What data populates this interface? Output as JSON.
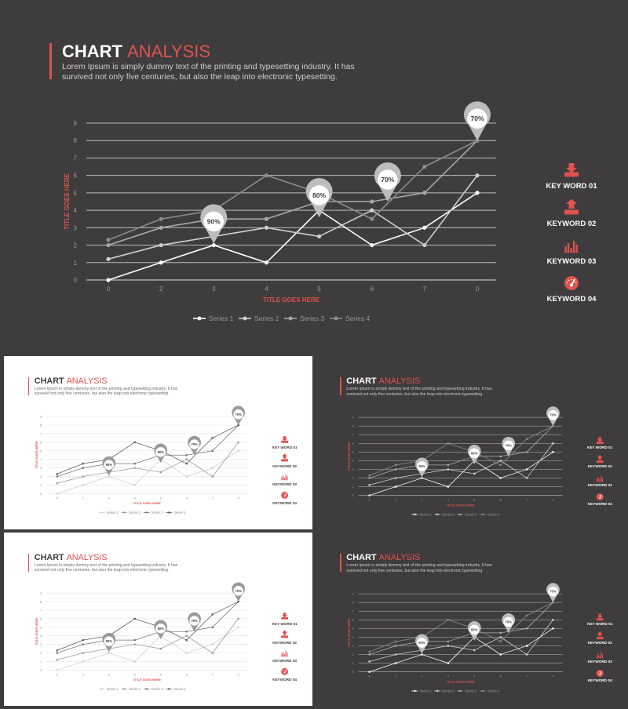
{
  "header": {
    "title_main": "CHART",
    "title_accent": "ANALYSIS",
    "description_line1": "Lorem Ipsum is simply dummy text of the printing and typesetting industry. It has",
    "description_line2": "survived not only five centuries, but also the leap into electronic typesetting."
  },
  "keywords": [
    {
      "label": "KEY WORD 01",
      "icon": "download-tray-icon"
    },
    {
      "label": "KEYWORD 02",
      "icon": "upload-tray-icon"
    },
    {
      "label": "KEYWORD 03",
      "icon": "bar-chart-icon"
    },
    {
      "label": "KEYWORD 04",
      "icon": "dashboard-gauge-icon"
    }
  ],
  "colors": {
    "accent": "#e0524d",
    "dark_bg": "#3f3c3d",
    "light_bg": "#ffffff"
  },
  "chart_data": {
    "type": "line",
    "x": [
      "0",
      "2",
      "3",
      "4",
      "5",
      "6",
      "7",
      "0"
    ],
    "xlabel": "TITLE GOES  HERE",
    "ylabel": "TITLE GOES  HERE",
    "ylim": [
      0,
      9
    ],
    "yticks": [
      0,
      1,
      2,
      3,
      4,
      5,
      6,
      7,
      8,
      9
    ],
    "grid": true,
    "legend_position": "bottom",
    "series": [
      {
        "name": "Series 1",
        "values": [
          0,
          1,
          2,
          1,
          4,
          2,
          3,
          5
        ]
      },
      {
        "name": "Series 2",
        "values": [
          1.2,
          2,
          2.5,
          3,
          2.5,
          4,
          2,
          6
        ]
      },
      {
        "name": "Series 3",
        "values": [
          2,
          3,
          3.5,
          3.5,
          4.5,
          4.5,
          5,
          8
        ]
      },
      {
        "name": "Series 4",
        "values": [
          2.3,
          3.5,
          4,
          6,
          5,
          3.5,
          6.5,
          8
        ]
      }
    ],
    "annotations": [
      {
        "label": "90%",
        "x_index": 2,
        "y": 2.1
      },
      {
        "label": "80%",
        "x_index": 4,
        "y": 3.6
      },
      {
        "label": "70%",
        "x_index": 5.3,
        "y": 4.5
      },
      {
        "label": "70%",
        "x_index": 7,
        "y": 8
      }
    ]
  }
}
